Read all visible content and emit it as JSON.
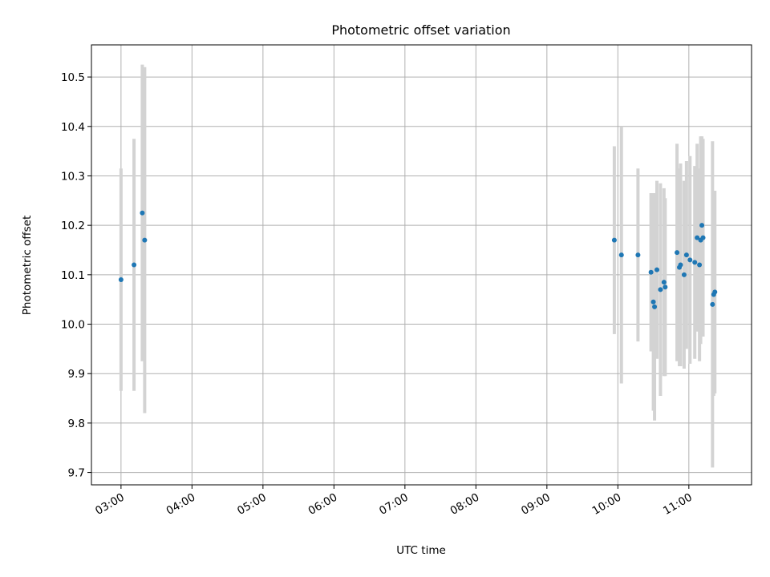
{
  "chart_data": {
    "type": "scatter",
    "title": "Photometric offset variation",
    "xlabel": "UTC time",
    "ylabel": "Photometric offset",
    "x_ticks": [
      "03:00",
      "04:00",
      "05:00",
      "06:00",
      "07:00",
      "08:00",
      "09:00",
      "10:00",
      "11:00"
    ],
    "x_range": [
      "02:35",
      "11:53"
    ],
    "y_ticks": [
      "9.7",
      "9.8",
      "9.9",
      "10.0",
      "10.1",
      "10.2",
      "10.3",
      "10.4",
      "10.5"
    ],
    "ylim": [
      9.675,
      10.565
    ],
    "grid": true,
    "colors": {
      "marker": "#1f77b4",
      "errorbar": "#d3d3d3",
      "grid": "#b0b0b0"
    },
    "series": [
      {
        "points": [
          {
            "t": "03:00",
            "y": 10.09,
            "yerr": 0.225
          },
          {
            "t": "03:11",
            "y": 10.12,
            "yerr": 0.255
          },
          {
            "t": "03:18",
            "y": 10.225,
            "yerr": 0.3
          },
          {
            "t": "03:20",
            "y": 10.17,
            "yerr": 0.35
          },
          {
            "t": "09:57",
            "y": 10.17,
            "yerr": 0.19
          },
          {
            "t": "10:03",
            "y": 10.14,
            "yerr": 0.26
          },
          {
            "t": "10:17",
            "y": 10.14,
            "yerr": 0.175
          },
          {
            "t": "10:28",
            "y": 10.105,
            "yerr": 0.16
          },
          {
            "t": "10:30",
            "y": 10.045,
            "yerr": 0.22
          },
          {
            "t": "10:31",
            "y": 10.035,
            "yerr": 0.23
          },
          {
            "t": "10:33",
            "y": 10.11,
            "yerr": 0.18
          },
          {
            "t": "10:36",
            "y": 10.07,
            "yerr": 0.215
          },
          {
            "t": "10:39",
            "y": 10.085,
            "yerr": 0.19
          },
          {
            "t": "10:40",
            "y": 10.075,
            "yerr": 0.18
          },
          {
            "t": "10:50",
            "y": 10.145,
            "yerr": 0.22
          },
          {
            "t": "10:52",
            "y": 10.115,
            "yerr": 0.2
          },
          {
            "t": "10:53",
            "y": 10.12,
            "yerr": 0.205
          },
          {
            "t": "10:56",
            "y": 10.1,
            "yerr": 0.19
          },
          {
            "t": "10:58",
            "y": 10.14,
            "yerr": 0.19
          },
          {
            "t": "11:01",
            "y": 10.13,
            "yerr": 0.21
          },
          {
            "t": "11:05",
            "y": 10.125,
            "yerr": 0.195
          },
          {
            "t": "11:07",
            "y": 10.175,
            "yerr": 0.19
          },
          {
            "t": "11:09",
            "y": 10.12,
            "yerr": 0.195
          },
          {
            "t": "11:10",
            "y": 10.17,
            "yerr": 0.21
          },
          {
            "t": "11:11",
            "y": 10.2,
            "yerr": 0.18
          },
          {
            "t": "11:12",
            "y": 10.175,
            "yerr": 0.2
          },
          {
            "t": "11:20",
            "y": 10.04,
            "yerr": 0.33
          },
          {
            "t": "11:21",
            "y": 10.06,
            "yerr": 0.205
          },
          {
            "t": "11:22",
            "y": 10.065,
            "yerr": 0.205
          }
        ]
      }
    ]
  }
}
